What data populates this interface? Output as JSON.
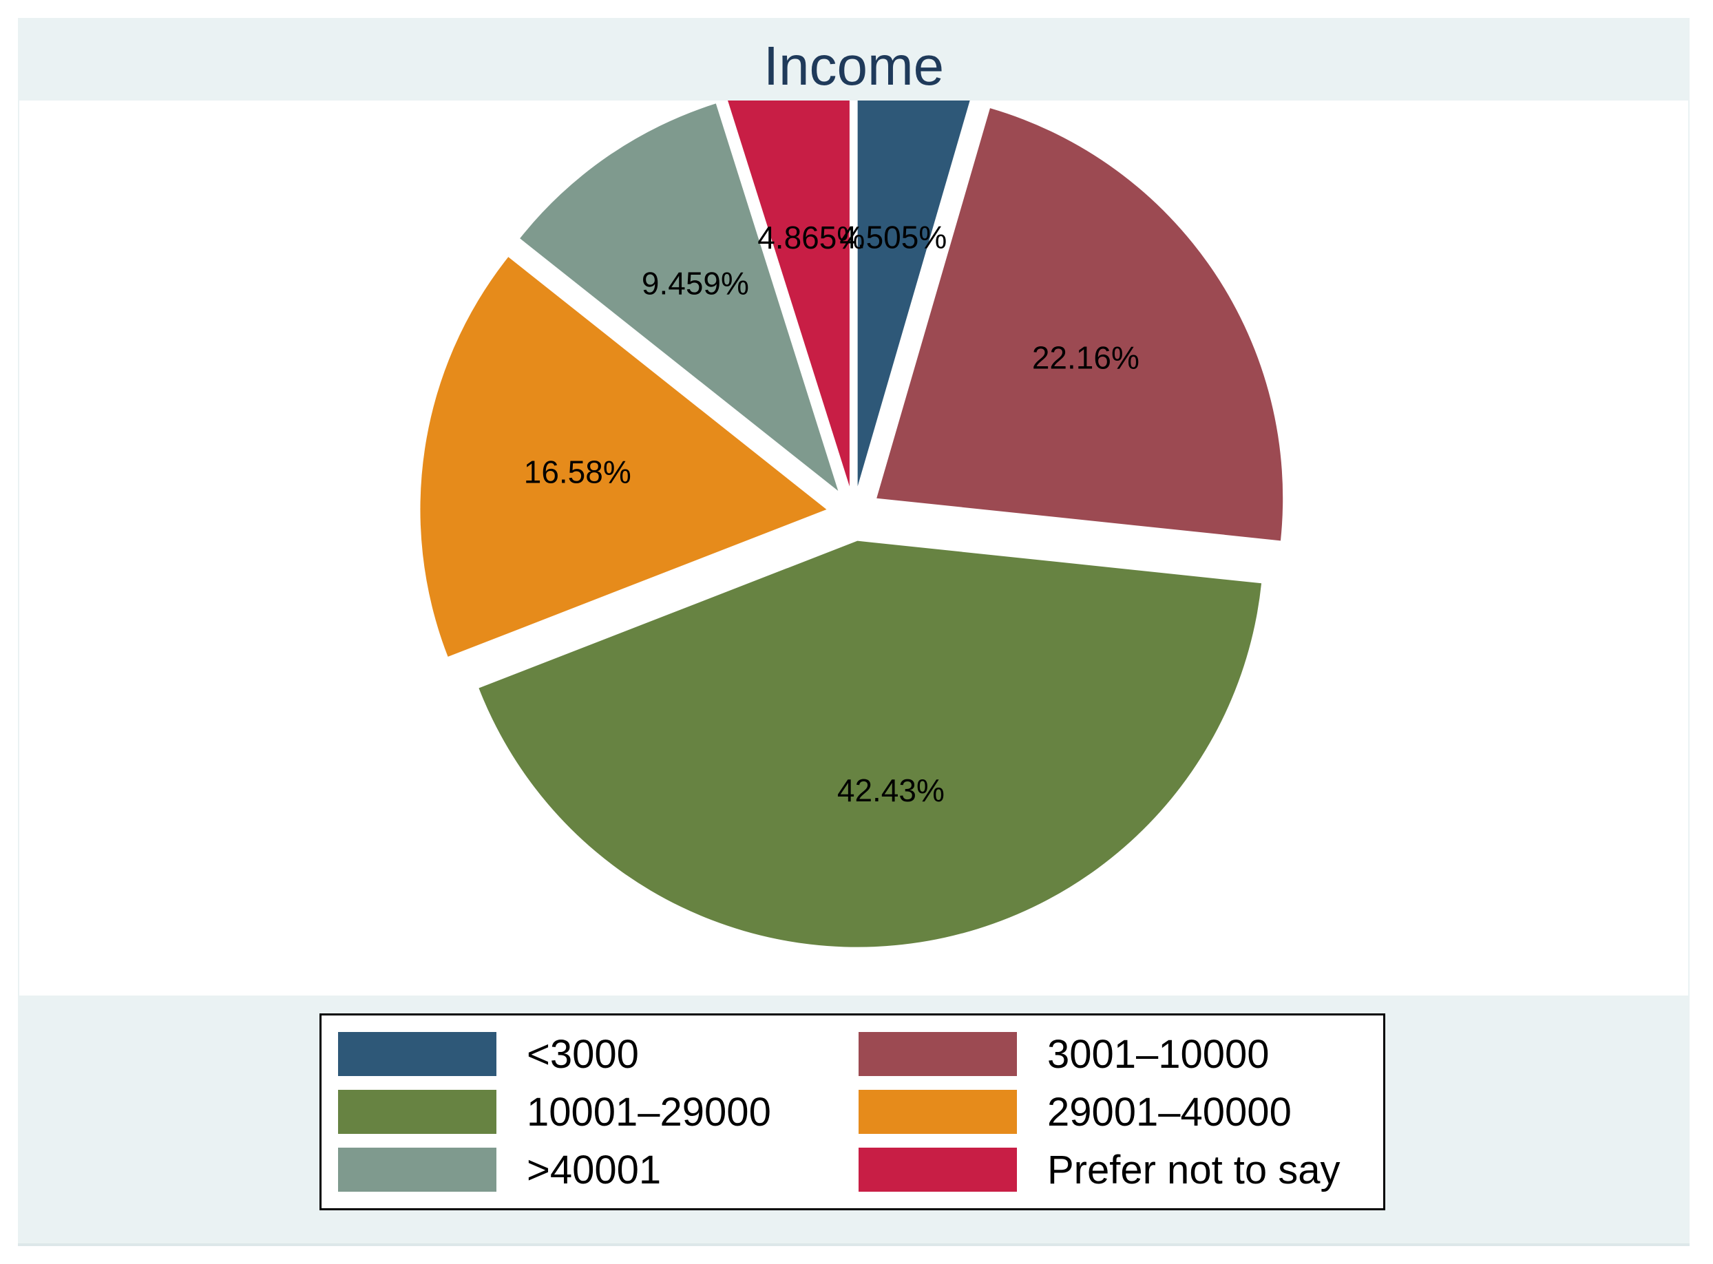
{
  "chart_data": {
    "type": "pie",
    "title": "Income",
    "categories": [
      "<3000",
      "3001–10000",
      "10001–29000",
      "29001–40000",
      ">40001",
      "Prefer not to say"
    ],
    "values": [
      4.505,
      22.16,
      42.43,
      16.58,
      9.459,
      4.865
    ],
    "value_labels": [
      "4.505%",
      "22.16%",
      "42.43%",
      "16.58%",
      "9.459%",
      "4.865%"
    ],
    "colors": [
      "#2e5878",
      "#9c4a52",
      "#678342",
      "#e68b1b",
      "#7f9a8e",
      "#c81e45"
    ],
    "exploded": true,
    "legend_position": "bottom"
  }
}
